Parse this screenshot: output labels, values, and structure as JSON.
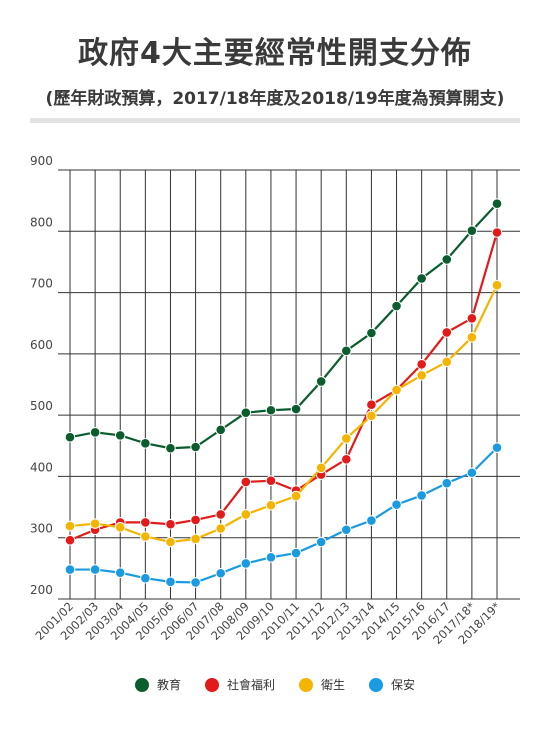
{
  "title": "政府4大主要經常性開支分佈",
  "subtitle": "(歷年財政預算，2017/18年度及2018/19年度為預算開支)",
  "chart_data": {
    "type": "line",
    "categories": [
      "2001/02",
      "2002/03",
      "2003/04",
      "2004/05",
      "2005/06",
      "2006/07",
      "2007/08",
      "2008/09",
      "2009/10",
      "2010/11",
      "2011/12",
      "2012/13",
      "2013/14",
      "2014/15",
      "2015/16",
      "2016/17",
      "2017/18*",
      "2018/19*"
    ],
    "ylim": [
      200,
      900
    ],
    "yticks": [
      200,
      300,
      400,
      500,
      600,
      700,
      800,
      900
    ],
    "grid": true,
    "legend_position": "bottom",
    "series": [
      {
        "name": "教育",
        "color": "#0b5d2e",
        "values": [
          464,
          472,
          467,
          454,
          446,
          448,
          476,
          504,
          508,
          510,
          555,
          605,
          634,
          678,
          723,
          754,
          801,
          845
        ]
      },
      {
        "name": "社會福利",
        "color": "#e21a1a",
        "values": [
          296,
          313,
          325,
          325,
          322,
          329,
          338,
          391,
          393,
          377,
          403,
          428,
          517,
          541,
          583,
          635,
          658,
          798
        ]
      },
      {
        "name": "衛生",
        "color": "#f4b400",
        "values": [
          319,
          323,
          317,
          302,
          293,
          298,
          315,
          338,
          353,
          368,
          414,
          462,
          499,
          541,
          565,
          587,
          627,
          712
        ]
      },
      {
        "name": "保安",
        "color": "#1a9ae0",
        "values": [
          248,
          248,
          243,
          234,
          228,
          227,
          242,
          258,
          268,
          275,
          293,
          313,
          328,
          354,
          369,
          389,
          406,
          447
        ]
      }
    ]
  }
}
